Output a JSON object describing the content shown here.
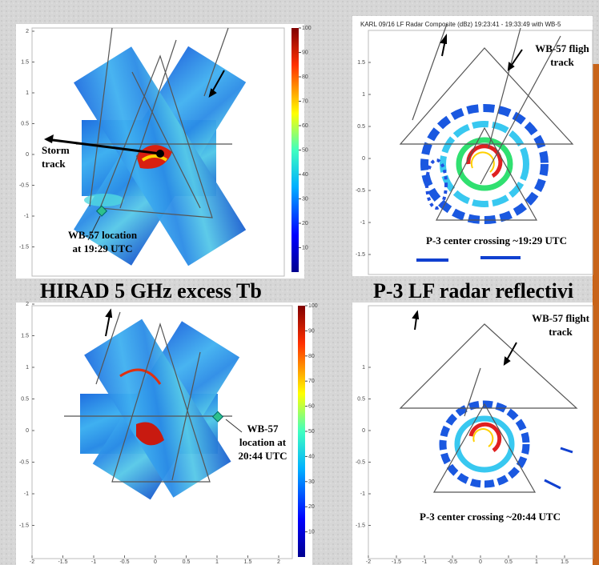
{
  "captions": [
    "HIRAD 5 GHz excess Tb",
    "P-3 LF radar reflectivi"
  ],
  "panels": [
    {
      "labels": [
        [
          "Storm",
          "track"
        ],
        [
          "WB-57 location",
          "at 19:29 UTC"
        ]
      ],
      "yticks": [
        2,
        1.5,
        1,
        0.5,
        0,
        -0.5,
        -1,
        -1.5
      ],
      "colorbar_ticks": [
        100,
        90,
        80,
        70,
        60,
        50,
        40,
        30,
        20,
        10
      ]
    },
    {
      "title": "KARL 09/16 LF Radar Composite (dBz) 19:23:41 - 19:33:49 with WB-5",
      "labels": [
        [
          "WB-57 fligh",
          "track"
        ],
        [
          "P-3 center crossing ~19:29 UTC"
        ]
      ],
      "yticks": [
        1.5,
        1,
        0.5,
        0,
        -0.5,
        -1,
        -1.5
      ]
    },
    {
      "labels": [
        [
          "WB-57",
          "location at",
          "20:44 UTC"
        ]
      ],
      "yticks": [
        2,
        1.5,
        1,
        0.5,
        0,
        -0.5,
        -1,
        -1.5
      ],
      "xticks": [
        -2,
        -1.5,
        -1,
        -0.5,
        0,
        0.5,
        1,
        1.5,
        2
      ],
      "colorbar_ticks": [
        100,
        90,
        80,
        70,
        60,
        50,
        40,
        30,
        20,
        10
      ]
    },
    {
      "labels": [
        [
          "WB-57 flight",
          "track"
        ],
        [
          "P-3 center crossing ~20:44 UTC"
        ]
      ],
      "yticks": [
        1,
        0.5,
        0,
        -0.5,
        -1,
        -1.5
      ],
      "xticks": [
        -2,
        -1.5,
        -1,
        -0.5,
        0,
        0.5,
        1,
        1.5
      ]
    }
  ]
}
